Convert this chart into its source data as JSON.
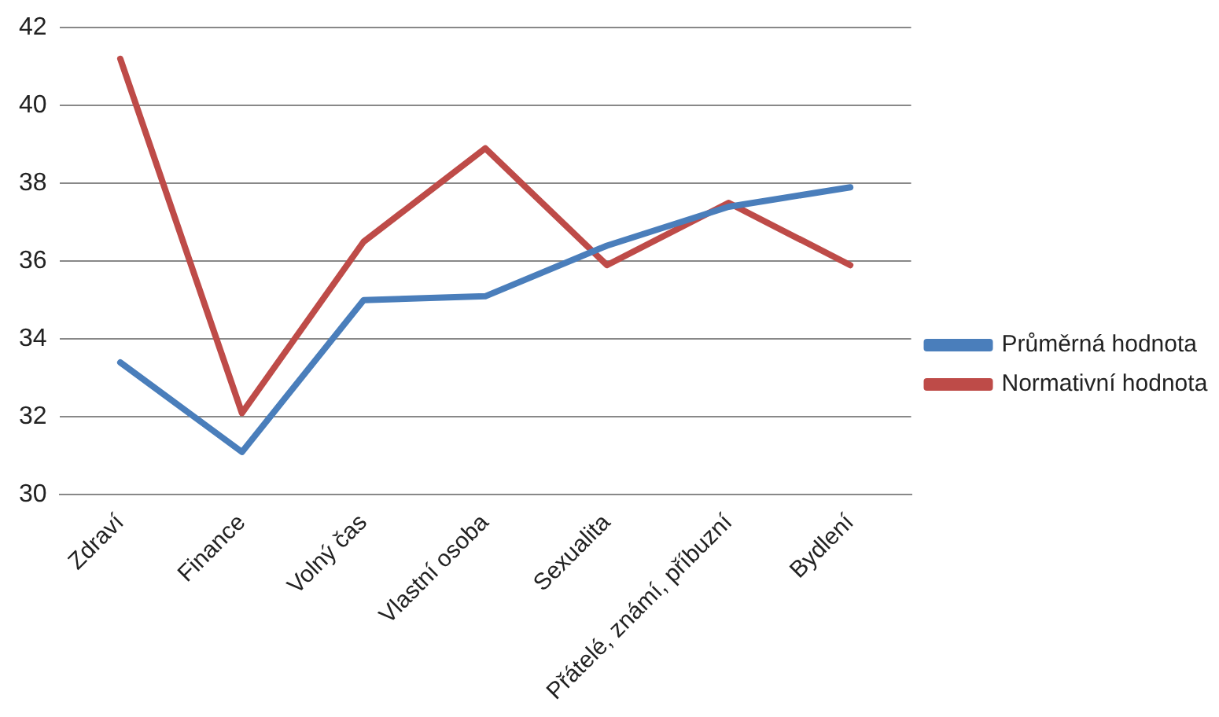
{
  "chart_data": {
    "type": "line",
    "categories": [
      "Zdraví",
      "Finance",
      "Volný čas",
      "Vlastní osoba",
      "Sexualita",
      "Přátelé, známí, příbuzní",
      "Bydlení"
    ],
    "series": [
      {
        "name": "Průměrná hodnota",
        "color": "#4a7ebb",
        "values": [
          33.4,
          31.1,
          35.0,
          35.1,
          36.4,
          37.4,
          37.9
        ]
      },
      {
        "name": "Normativní hodnota",
        "color": "#be4b48",
        "values": [
          41.2,
          32.1,
          36.5,
          38.9,
          35.9,
          37.5,
          35.9
        ]
      }
    ],
    "ylim": [
      30,
      42
    ],
    "yticks": [
      30,
      32,
      34,
      36,
      38,
      40,
      42
    ],
    "grid": "y",
    "legend": "right",
    "marker": "none",
    "line_style": "solid"
  }
}
